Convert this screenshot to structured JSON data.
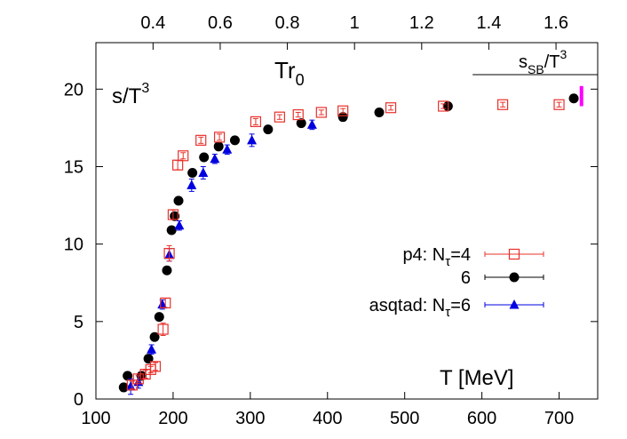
{
  "chart_data": {
    "type": "scatter",
    "ylabel_main": "s/T",
    "ylabel_sup": "3",
    "xlabel": "T [MeV]",
    "top_axis_label_main": "Tr",
    "top_axis_label_sub": "0",
    "sb_label_main": "s",
    "sb_label_sub": "SB",
    "sb_label_mid": "/T",
    "sb_label_sup": "3",
    "xlim": [
      100,
      750
    ],
    "ylim": [
      0,
      23
    ],
    "x_ticks": [
      "100",
      "200",
      "300",
      "400",
      "500",
      "600",
      "700"
    ],
    "y_ticks": [
      "0",
      "5",
      "10",
      "15",
      "20"
    ],
    "top_ticks": [
      "0.4",
      "0.6",
      "0.8",
      "1",
      "1.2",
      "1.4",
      "1.6"
    ],
    "top_scale_mev_per_unit": 435,
    "sb_limit": {
      "y": 19.5,
      "x_start": 588,
      "x_end": 750,
      "marker_x": 729,
      "marker_y_range": [
        18.9,
        20.2
      ],
      "color": "#ff00ff"
    },
    "legend_placement": "right-center",
    "series": [
      {
        "legend_main": "p4: N",
        "legend_sub": "τ",
        "legend_tail": "=4",
        "marker": "open-square",
        "color": "#e8302a",
        "points": [
          {
            "x": 147,
            "y": 0.9,
            "err": 0.25
          },
          {
            "x": 155,
            "y": 1.3,
            "err": 0.2
          },
          {
            "x": 164,
            "y": 1.6,
            "err": 0.25
          },
          {
            "x": 171,
            "y": 1.9,
            "err": 0.2
          },
          {
            "x": 177,
            "y": 2.1,
            "err": 0.25
          },
          {
            "x": 187,
            "y": 4.5,
            "err": 0.4
          },
          {
            "x": 190,
            "y": 6.2,
            "err": 0.3
          },
          {
            "x": 195,
            "y": 9.4,
            "err": 0.5
          },
          {
            "x": 200,
            "y": 11.9,
            "err": 0.3
          },
          {
            "x": 206,
            "y": 15.1,
            "err": 0.3
          },
          {
            "x": 213,
            "y": 15.7,
            "err": 0.2
          },
          {
            "x": 236,
            "y": 16.7,
            "err": 0.2
          },
          {
            "x": 260,
            "y": 16.9,
            "err": 0.2
          },
          {
            "x": 307,
            "y": 17.9,
            "err": 0.2
          },
          {
            "x": 338,
            "y": 18.2,
            "err": 0.15
          },
          {
            "x": 362,
            "y": 18.35,
            "err": 0.15
          },
          {
            "x": 392,
            "y": 18.5,
            "err": 0.15
          },
          {
            "x": 420,
            "y": 18.6,
            "err": 0.15
          },
          {
            "x": 482,
            "y": 18.8,
            "err": 0.15
          },
          {
            "x": 550,
            "y": 18.9,
            "err": 0.15
          },
          {
            "x": 627,
            "y": 19.0,
            "err": 0.15
          },
          {
            "x": 700,
            "y": 19.0,
            "err": 0.15
          }
        ]
      },
      {
        "legend_main": "6",
        "legend_sub": "",
        "legend_tail": "",
        "marker": "filled-circle",
        "color": "#000000",
        "points": [
          {
            "x": 136,
            "y": 0.75,
            "err": 0.2
          },
          {
            "x": 141,
            "y": 1.5,
            "err": 0.2
          },
          {
            "x": 159,
            "y": 1.5,
            "err": 0.2
          },
          {
            "x": 168,
            "y": 2.6,
            "err": 0.2
          },
          {
            "x": 176,
            "y": 4.0,
            "err": 0.2
          },
          {
            "x": 182,
            "y": 5.3,
            "err": 0.2
          },
          {
            "x": 192,
            "y": 8.3,
            "err": 0.2
          },
          {
            "x": 198,
            "y": 10.9,
            "err": 0.2
          },
          {
            "x": 202,
            "y": 11.8,
            "err": 0.2
          },
          {
            "x": 207,
            "y": 12.8,
            "err": 0.2
          },
          {
            "x": 225,
            "y": 14.6,
            "err": 0.2
          },
          {
            "x": 240,
            "y": 15.6,
            "err": 0.2
          },
          {
            "x": 259,
            "y": 16.3,
            "err": 0.2
          },
          {
            "x": 280,
            "y": 16.7,
            "err": 0.2
          },
          {
            "x": 323,
            "y": 17.4,
            "err": 0.2
          },
          {
            "x": 366,
            "y": 17.8,
            "err": 0.2
          },
          {
            "x": 420,
            "y": 18.2,
            "err": 0.2
          },
          {
            "x": 467,
            "y": 18.5,
            "err": 0.2
          },
          {
            "x": 556,
            "y": 18.9,
            "err": 0.2
          },
          {
            "x": 719,
            "y": 19.4,
            "err": 0.2
          }
        ]
      },
      {
        "legend_main": "asqtad: N",
        "legend_sub": "τ",
        "legend_tail": "=6",
        "marker": "filled-triangle",
        "color": "#0000e0",
        "points": [
          {
            "x": 145,
            "y": 0.8,
            "err": 0.5
          },
          {
            "x": 155,
            "y": 1.1,
            "err": 0.4
          },
          {
            "x": 172,
            "y": 3.2,
            "err": 0.3
          },
          {
            "x": 186,
            "y": 6.1,
            "err": 0.3
          },
          {
            "x": 195,
            "y": 9.3,
            "err": 0.4
          },
          {
            "x": 208,
            "y": 11.2,
            "err": 0.3
          },
          {
            "x": 224,
            "y": 13.8,
            "err": 0.4
          },
          {
            "x": 239,
            "y": 14.6,
            "err": 0.4
          },
          {
            "x": 254,
            "y": 15.5,
            "err": 0.3
          },
          {
            "x": 270,
            "y": 16.1,
            "err": 0.3
          },
          {
            "x": 302,
            "y": 16.7,
            "err": 0.4
          },
          {
            "x": 380,
            "y": 17.7,
            "err": 0.3
          }
        ]
      }
    ]
  }
}
